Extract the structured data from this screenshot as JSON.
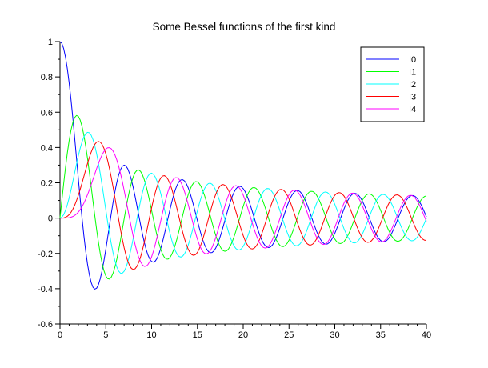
{
  "chart_data": {
    "type": "line",
    "title": "Some Bessel functions of the first kind",
    "xlabel": "",
    "ylabel": "",
    "xlim": [
      0,
      40
    ],
    "ylim": [
      -0.6,
      1
    ],
    "x_major_ticks": [
      0,
      5,
      10,
      15,
      20,
      25,
      30,
      35,
      40
    ],
    "x_tick_labels": [
      "0",
      "5",
      "10",
      "15",
      "20",
      "25",
      "30",
      "35",
      "40"
    ],
    "x_minor_step": 1,
    "y_major_ticks": [
      -0.6,
      -0.4,
      -0.2,
      0,
      0.2,
      0.4,
      0.6,
      0.8,
      1
    ],
    "y_tick_labels": [
      "-0.6",
      "-0.4",
      "-0.2",
      "0",
      "0.2",
      "0.4",
      "0.6",
      "0.8",
      "1"
    ],
    "y_minor_step": 0.1,
    "grid": false,
    "background": "#ffffff",
    "axis_color": "#000000",
    "legend_position": "top-right",
    "sampling": {
      "x_start": 0,
      "x_end": 40,
      "x_step": 0.2,
      "rule": "y = BesselJ(order, x)"
    },
    "series": [
      {
        "name": "I0",
        "color": "#0000ff",
        "function": "BesselJ(0, x)",
        "order": 0,
        "value_at_0": 1.0,
        "first_peak": {
          "x": 0.0,
          "y": 1.0
        }
      },
      {
        "name": "I1",
        "color": "#00ff00",
        "function": "BesselJ(1, x)",
        "order": 1,
        "value_at_0": 0.0,
        "first_peak": {
          "x": 1.84,
          "y": 0.582
        }
      },
      {
        "name": "I2",
        "color": "#00ffff",
        "function": "BesselJ(2, x)",
        "order": 2,
        "value_at_0": 0.0,
        "first_peak": {
          "x": 3.05,
          "y": 0.486
        }
      },
      {
        "name": "I3",
        "color": "#ff0000",
        "function": "BesselJ(3, x)",
        "order": 3,
        "value_at_0": 0.0,
        "first_peak": {
          "x": 4.2,
          "y": 0.434
        }
      },
      {
        "name": "I4",
        "color": "#ff00ff",
        "function": "BesselJ(4, x)",
        "order": 4,
        "value_at_0": 0.0,
        "first_peak": {
          "x": 5.32,
          "y": 0.4
        }
      }
    ]
  }
}
